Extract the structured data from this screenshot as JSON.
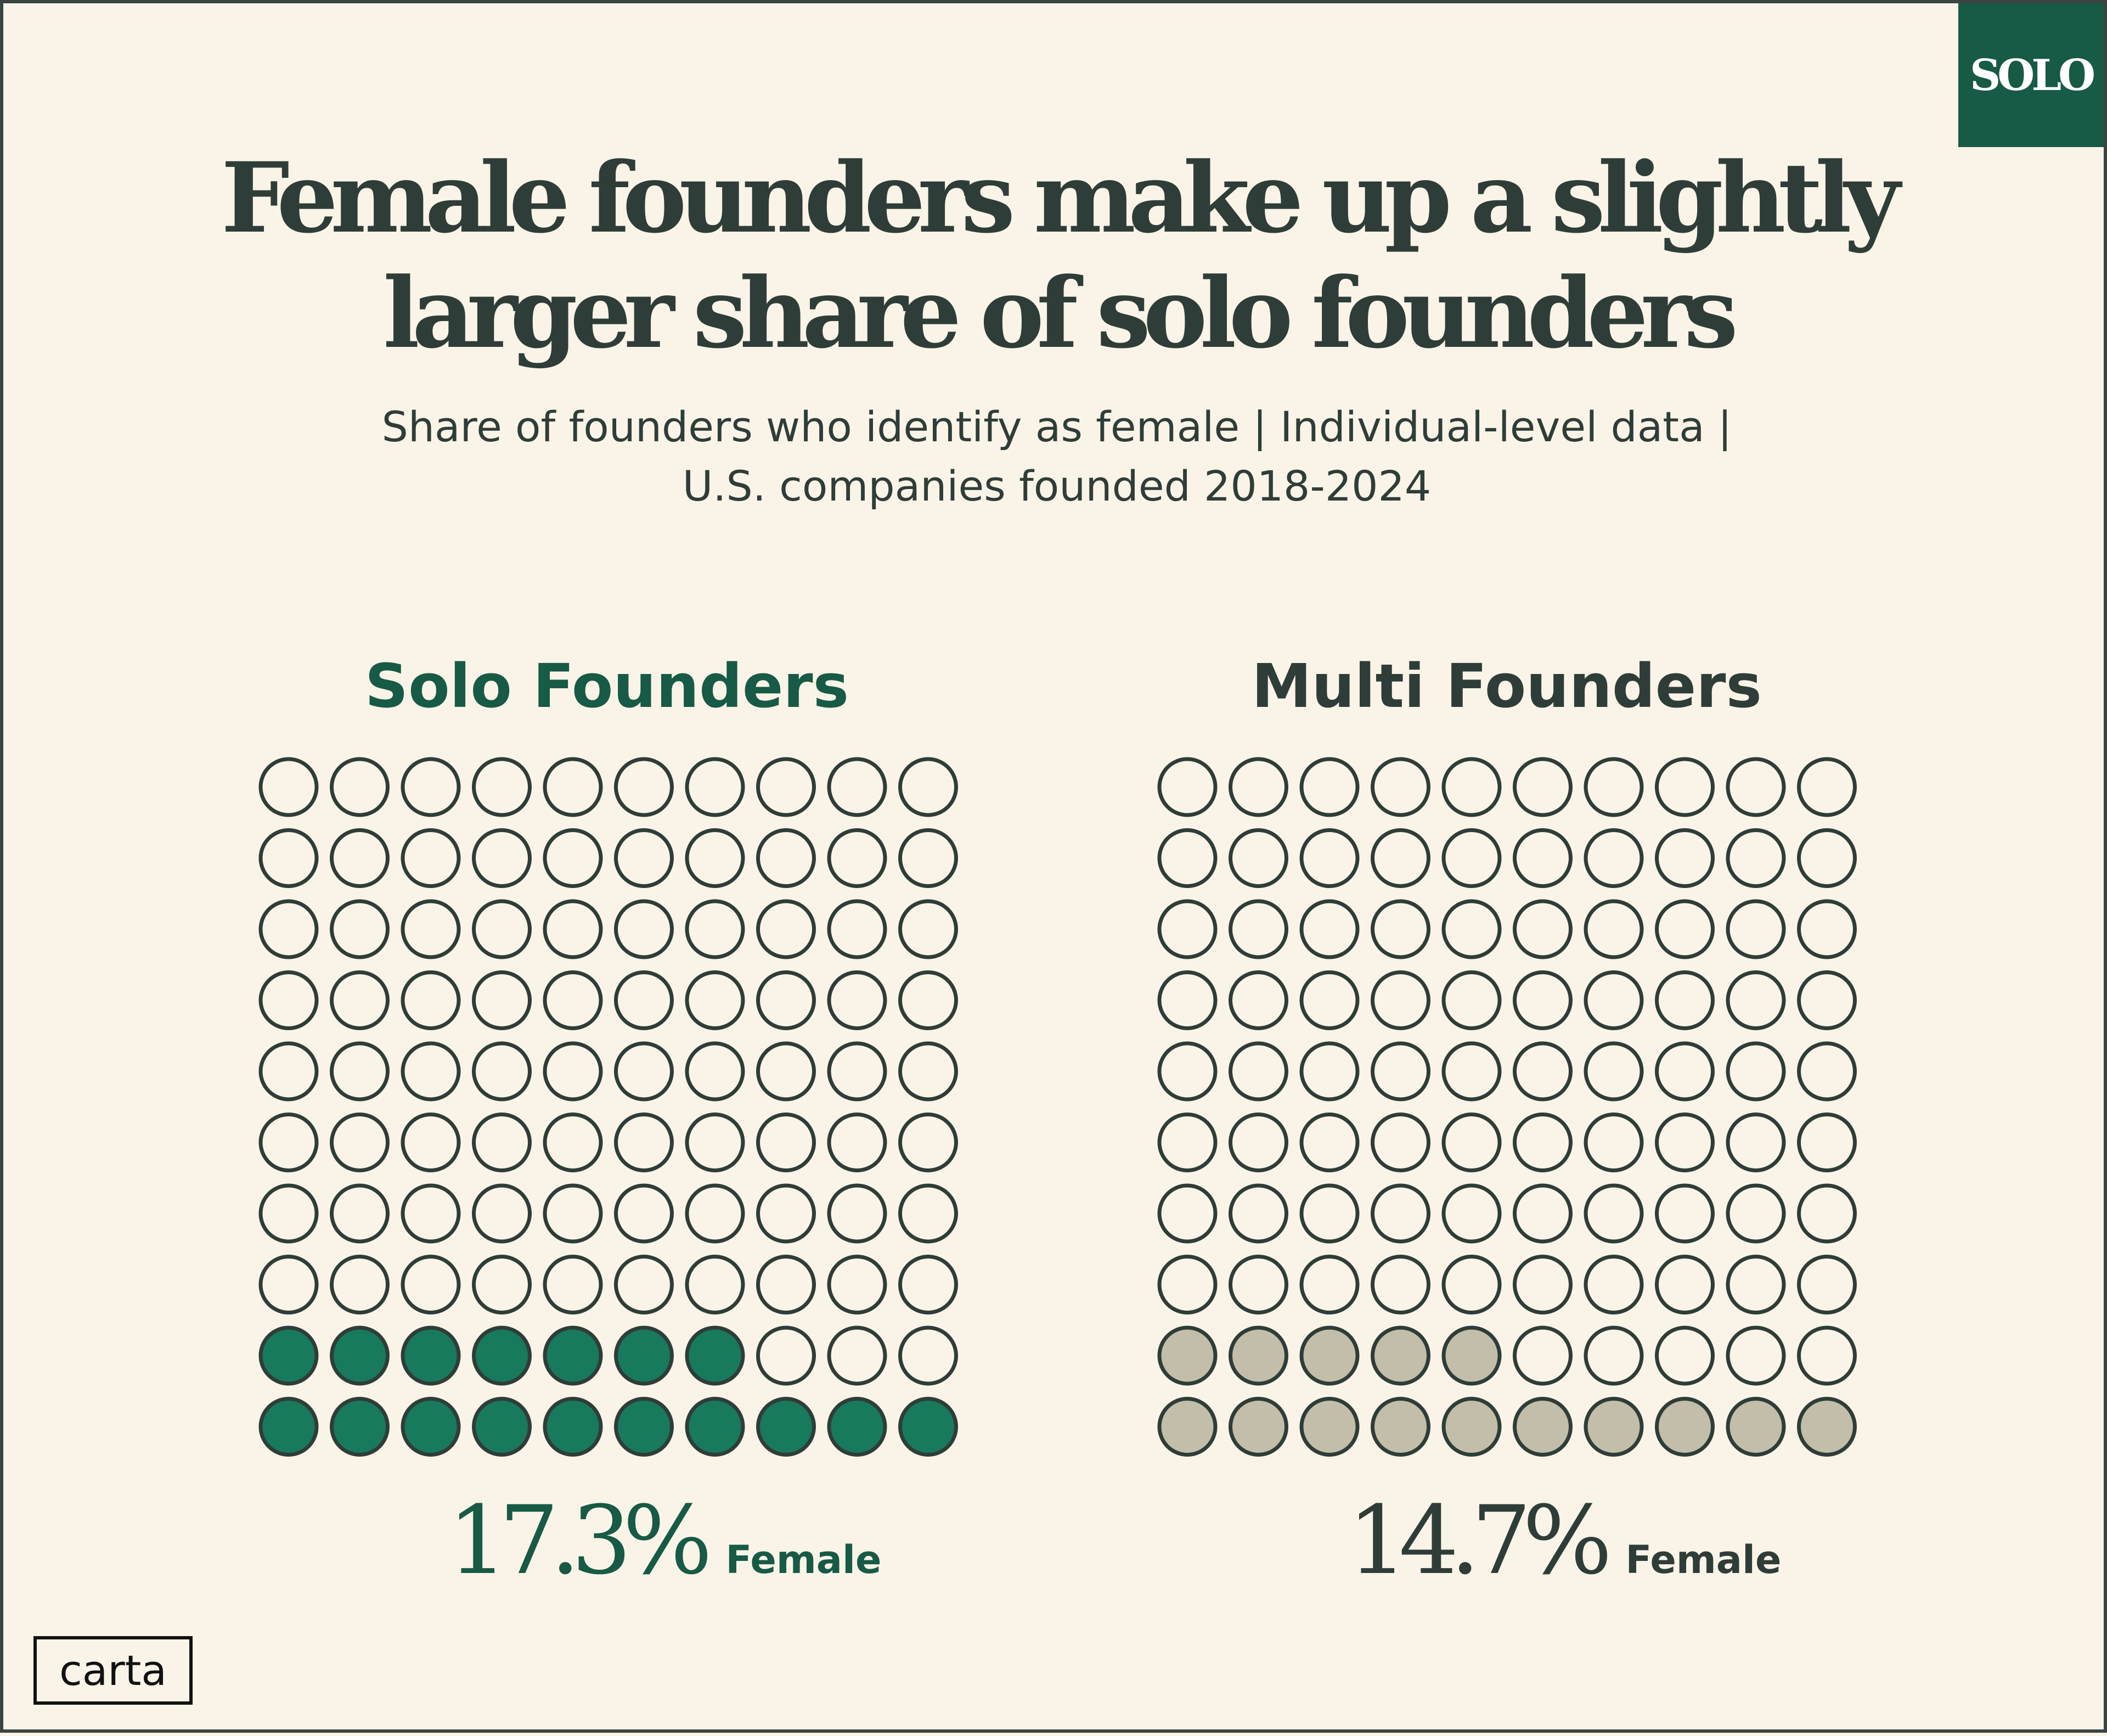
{
  "badge": {
    "label": "SOLO"
  },
  "header": {
    "title_line1": "Female founders make up a slightly",
    "title_line2": "larger share of solo founders",
    "subtitle_line1": "Share of founders who identify as female | Individual-level data |",
    "subtitle_line2": "U.S. companies founded 2018-2024"
  },
  "chart_data": [
    {
      "type": "waffle",
      "title": "Solo Founders",
      "value_percent": 17.3,
      "value_label": "17.3%",
      "category_label": "Female",
      "grid": {
        "rows": 10,
        "cols": 10
      },
      "filled_units": 17,
      "fill_color": "#187a5c",
      "title_color": "#175a45"
    },
    {
      "type": "waffle",
      "title": "Multi Founders",
      "value_percent": 14.7,
      "value_label": "14.7%",
      "category_label": "Female",
      "grid": {
        "rows": 10,
        "cols": 10
      },
      "filled_units": 15,
      "fill_color": "#c2bea9",
      "title_color": "#2f3d38"
    }
  ],
  "colors": {
    "background": "#faf4e8",
    "stroke": "#2f3d38",
    "empty_fill": "#faf4e8"
  },
  "logo": {
    "label": "carta"
  }
}
